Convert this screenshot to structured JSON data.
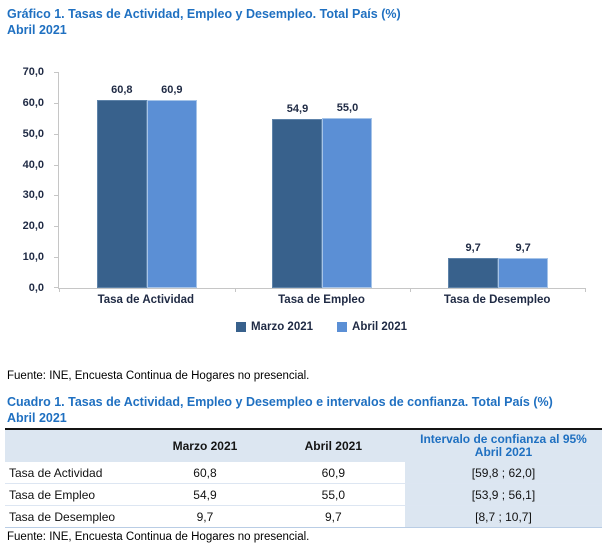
{
  "colors": {
    "title_blue": "#1F70C1",
    "marzo_bar": "#38618C",
    "marzo_bar_border": "#5E83A9",
    "abril_bar": "#5B8FD5",
    "abril_bar_border": "#A6C4E8",
    "table_header_bg": "#DCE6F1"
  },
  "chart_title": {
    "line1": "Gráfico 1. Tasas de Actividad, Empleo y Desempleo. Total País (%)",
    "line2": "Abril 2021"
  },
  "chart_data": {
    "type": "bar",
    "title": "Gráfico 1. Tasas de Actividad, Empleo y Desempleo. Total País (%) Abril 2021",
    "categories": [
      "Tasa de Actividad",
      "Tasa de Empleo",
      "Tasa de Desempleo"
    ],
    "series": [
      {
        "name": "Marzo 2021",
        "color": "#38618C",
        "border": "#5E83A9",
        "values": [
          60.8,
          54.9,
          9.7
        ],
        "labels": [
          "60,8",
          "54,9",
          "9,7"
        ]
      },
      {
        "name": "Abril 2021",
        "color": "#5B8FD5",
        "border": "#A6C4E8",
        "values": [
          60.9,
          55.0,
          9.7
        ],
        "labels": [
          "60,9",
          "55,0",
          "9,7"
        ]
      }
    ],
    "xlabel": "",
    "ylabel": "",
    "ylim": [
      0,
      70
    ],
    "ytick_step": 10,
    "ytick_labels": [
      "0,0",
      "10,0",
      "20,0",
      "30,0",
      "40,0",
      "50,0",
      "60,0",
      "70,0"
    ],
    "grid": false,
    "legend_position": "bottom"
  },
  "source_note_chart": "Fuente: INE, Encuesta Continua de Hogares no presencial.",
  "table_title": {
    "line1": "Cuadro 1. Tasas de Actividad, Empleo y Desempleo e intervalos de confianza. Total País (%)",
    "line2": "Abril 2021"
  },
  "table": {
    "headers": [
      "",
      "Marzo 2021",
      "Abril 2021",
      "Intervalo de confianza al 95%\nAbril 2021"
    ],
    "rows": [
      {
        "label": "Tasa de Actividad",
        "marzo": "60,8",
        "abril": "60,9",
        "intervalo": "[59,8 ; 62,0]"
      },
      {
        "label": "Tasa de Empleo",
        "marzo": "54,9",
        "abril": "55,0",
        "intervalo": "[53,9 ; 56,1]"
      },
      {
        "label": "Tasa de Desempleo",
        "marzo": "9,7",
        "abril": "9,7",
        "intervalo": "[8,7 ; 10,7]"
      }
    ]
  },
  "source_note_table": "Fuente: INE, Encuesta Continua de Hogares no presencial."
}
